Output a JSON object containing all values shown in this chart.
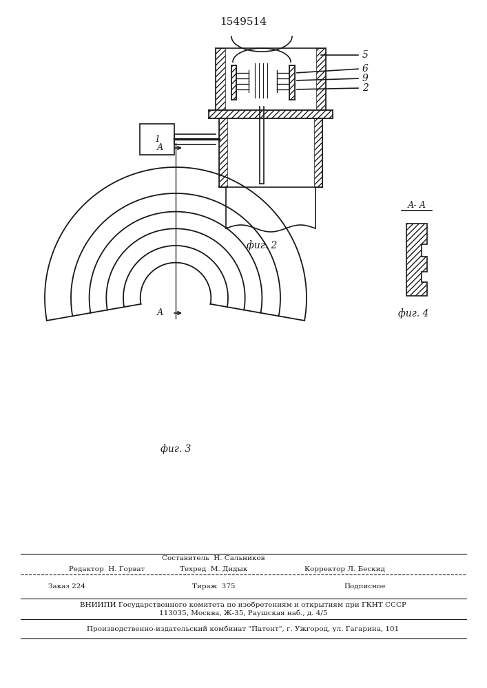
{
  "title": "1549514",
  "fig2_label": "фиг. 2",
  "fig3_label": "фиг. 3",
  "fig4_label": "фиг. 4",
  "fig4_title": "А- А",
  "background_color": "#ffffff",
  "line_color": "#1a1a1a",
  "label1": "1",
  "label2": "2",
  "label5": "5",
  "label6": "6",
  "label9": "9",
  "footer_line1_col2": "Составитель  Н. Сальников",
  "footer_line1_col1": "Редактор  Н. Горват",
  "footer_line1_col2b": "Техред  М. Дидык",
  "footer_line1_col3": "Корректор Л. Бескид",
  "footer_line2_col1": "Заказ 224",
  "footer_line2_col2": "Тираж  375",
  "footer_line2_col3": "Подписное",
  "footer_line3": "ВНИИПИ Государственного комитета по изобретениям и открытиям при ГКНТ СССР",
  "footer_line4": "113035, Москва, Ж-35, Раушская наб., д. 4/5",
  "footer_line5": "Производственно-издательский комбинат \"Патент\", г. Ужгород, ул. Гагарина, 101"
}
